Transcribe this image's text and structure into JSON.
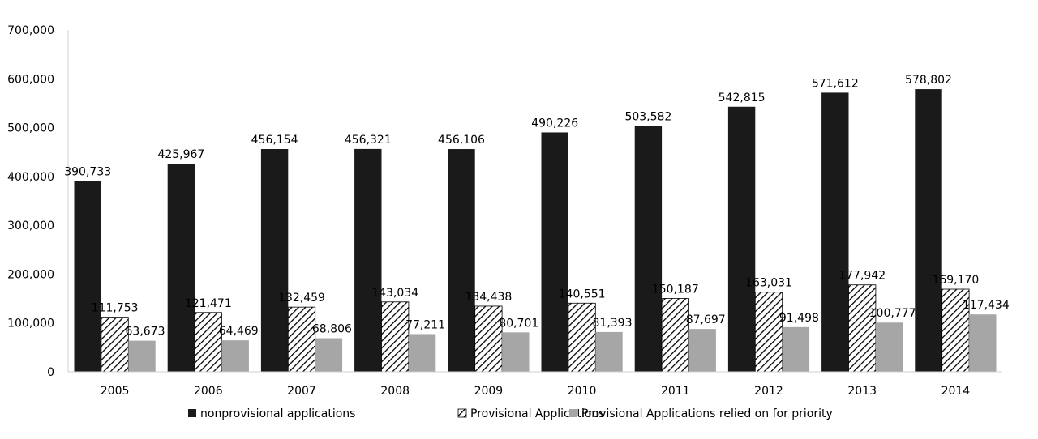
{
  "chart_data": {
    "type": "bar",
    "title": "",
    "xlabel": "",
    "ylabel": "",
    "ylim": [
      0,
      700000
    ],
    "yticks": [
      "0",
      "100,000",
      "200,000",
      "300,000",
      "400,000",
      "500,000",
      "600,000",
      "700,000"
    ],
    "grid": false,
    "legend_position": "bottom",
    "categories": [
      "2005",
      "2006",
      "2007",
      "2008",
      "2009",
      "2010",
      "2011",
      "2012",
      "2013",
      "2014"
    ],
    "series": [
      {
        "name": "nonprovisional applications",
        "fill": "solid-black",
        "color": "#1a1a1a",
        "values": [
          390733,
          425967,
          456154,
          456321,
          456106,
          490226,
          503582,
          542815,
          571612,
          578802
        ],
        "labels": [
          "390,733",
          "425,967",
          "456,154",
          "456,321",
          "456,106",
          "490,226",
          "503,582",
          "542,815",
          "571,612",
          "578,802"
        ]
      },
      {
        "name": "Provisional Applications",
        "fill": "diagonal-hatch",
        "color": "#000000",
        "values": [
          111753,
          121471,
          132459,
          143034,
          134438,
          140551,
          150187,
          163031,
          177942,
          169170
        ],
        "labels": [
          "111,753",
          "121,471",
          "132,459",
          "143,034",
          "134,438",
          "140,551",
          "150,187",
          "163,031",
          "177,942",
          "169,170"
        ]
      },
      {
        "name": "Provisional Applications relied on for priority",
        "fill": "solid-gray",
        "color": "#a6a6a6",
        "values": [
          63673,
          64469,
          68806,
          77211,
          80701,
          81393,
          87697,
          91498,
          100777,
          117434
        ],
        "labels": [
          "63,673",
          "64,469",
          "68,806",
          "77,211",
          "80,701",
          "81,393",
          "87,697",
          "91,498",
          "100,777",
          "117,434"
        ]
      }
    ]
  }
}
